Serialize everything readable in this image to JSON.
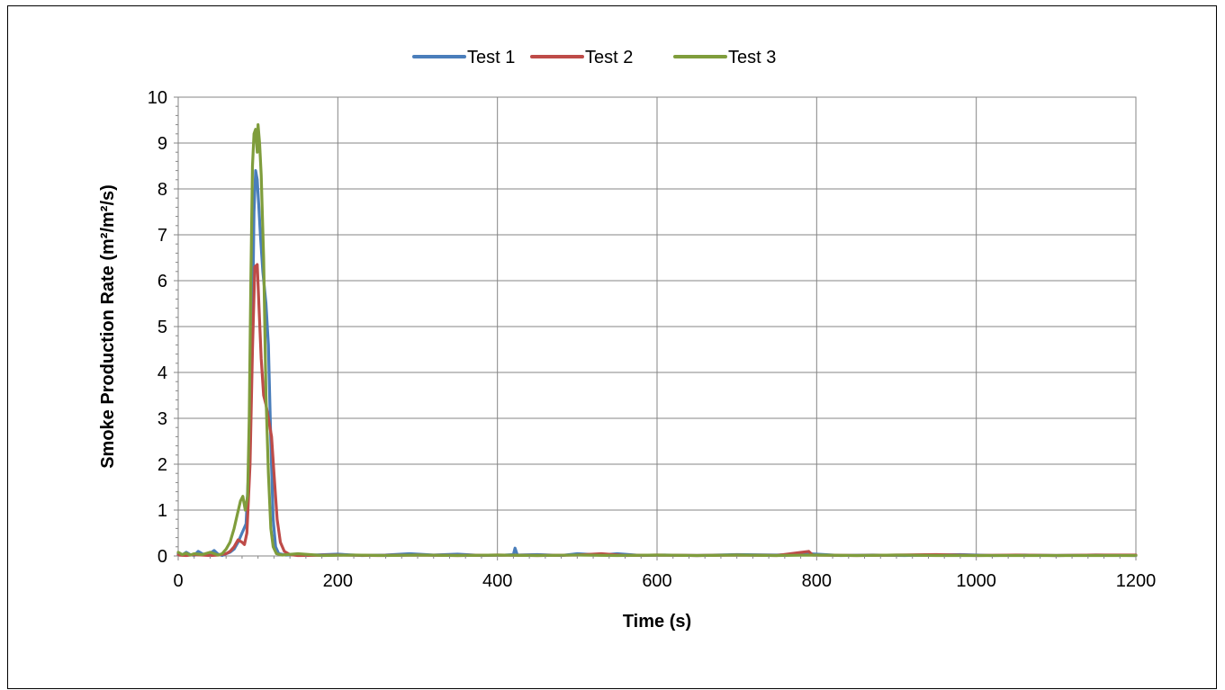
{
  "chart_data": {
    "type": "line",
    "title": "",
    "xlabel": "Time (s)",
    "ylabel": "Smoke Production Rate (m²/m²/s)",
    "xlim": [
      0,
      1200
    ],
    "ylim": [
      0,
      10
    ],
    "xticks": [
      0,
      200,
      400,
      600,
      800,
      1000,
      1200
    ],
    "yticks": [
      0,
      1,
      2,
      3,
      4,
      5,
      6,
      7,
      8,
      9,
      10
    ],
    "grid": true,
    "legend_position": "top-center",
    "series": [
      {
        "name": "Test 1",
        "color": "#4a7ebb",
        "points": [
          [
            0,
            0.05
          ],
          [
            5,
            0.02
          ],
          [
            10,
            0.08
          ],
          [
            15,
            0.03
          ],
          [
            20,
            0.01
          ],
          [
            25,
            0.1
          ],
          [
            30,
            0.05
          ],
          [
            35,
            0.02
          ],
          [
            40,
            0.06
          ],
          [
            45,
            0.12
          ],
          [
            50,
            0.04
          ],
          [
            55,
            0.01
          ],
          [
            60,
            0.05
          ],
          [
            65,
            0.08
          ],
          [
            70,
            0.15
          ],
          [
            75,
            0.3
          ],
          [
            80,
            0.5
          ],
          [
            85,
            0.7
          ],
          [
            90,
            2.5
          ],
          [
            93,
            5.0
          ],
          [
            95,
            7.5
          ],
          [
            97,
            8.4
          ],
          [
            99,
            8.2
          ],
          [
            101,
            7.6
          ],
          [
            103,
            7.0
          ],
          [
            106,
            6.2
          ],
          [
            110,
            5.5
          ],
          [
            113,
            4.6
          ],
          [
            116,
            2.5
          ],
          [
            119,
            0.8
          ],
          [
            122,
            0.2
          ],
          [
            126,
            0.05
          ],
          [
            135,
            0.02
          ],
          [
            150,
            0.03
          ],
          [
            170,
            0.02
          ],
          [
            200,
            0.04
          ],
          [
            230,
            0.01
          ],
          [
            260,
            0.02
          ],
          [
            290,
            0.05
          ],
          [
            320,
            0.02
          ],
          [
            350,
            0.04
          ],
          [
            380,
            0.01
          ],
          [
            410,
            0.02
          ],
          [
            420,
            0.03
          ],
          [
            422,
            0.17
          ],
          [
            425,
            0.02
          ],
          [
            450,
            0.03
          ],
          [
            480,
            0.01
          ],
          [
            500,
            0.05
          ],
          [
            530,
            0.02
          ],
          [
            550,
            0.05
          ],
          [
            580,
            0.01
          ],
          [
            610,
            0.02
          ],
          [
            650,
            0.01
          ],
          [
            700,
            0.03
          ],
          [
            750,
            0.02
          ],
          [
            790,
            0.05
          ],
          [
            830,
            0.01
          ],
          [
            870,
            0.02
          ],
          [
            910,
            0.01
          ],
          [
            950,
            0.02
          ],
          [
            980,
            0.03
          ],
          [
            1020,
            0.01
          ],
          [
            1060,
            0.02
          ],
          [
            1100,
            0.01
          ],
          [
            1150,
            0.02
          ],
          [
            1200,
            0.01
          ]
        ]
      },
      {
        "name": "Test 2",
        "color": "#be4b48",
        "points": [
          [
            0,
            0.02
          ],
          [
            10,
            0.01
          ],
          [
            20,
            0.03
          ],
          [
            30,
            0.02
          ],
          [
            40,
            0.01
          ],
          [
            50,
            0.02
          ],
          [
            60,
            0.05
          ],
          [
            65,
            0.1
          ],
          [
            70,
            0.2
          ],
          [
            75,
            0.35
          ],
          [
            80,
            0.3
          ],
          [
            83,
            0.25
          ],
          [
            86,
            0.5
          ],
          [
            90,
            2.0
          ],
          [
            93,
            4.5
          ],
          [
            96,
            6.3
          ],
          [
            99,
            6.35
          ],
          [
            101,
            5.5
          ],
          [
            104,
            4.3
          ],
          [
            107,
            3.5
          ],
          [
            110,
            3.3
          ],
          [
            113,
            3.0
          ],
          [
            117,
            2.6
          ],
          [
            120,
            1.8
          ],
          [
            124,
            0.8
          ],
          [
            128,
            0.3
          ],
          [
            133,
            0.1
          ],
          [
            140,
            0.03
          ],
          [
            150,
            0.01
          ],
          [
            200,
            0.02
          ],
          [
            250,
            0.01
          ],
          [
            300,
            0.02
          ],
          [
            350,
            0.01
          ],
          [
            400,
            0.02
          ],
          [
            450,
            0.01
          ],
          [
            500,
            0.02
          ],
          [
            530,
            0.05
          ],
          [
            560,
            0.01
          ],
          [
            600,
            0.02
          ],
          [
            650,
            0.01
          ],
          [
            700,
            0.02
          ],
          [
            750,
            0.01
          ],
          [
            790,
            0.1
          ],
          [
            795,
            0.02
          ],
          [
            850,
            0.01
          ],
          [
            900,
            0.02
          ],
          [
            950,
            0.03
          ],
          [
            1000,
            0.01
          ],
          [
            1050,
            0.02
          ],
          [
            1100,
            0.01
          ],
          [
            1150,
            0.02
          ],
          [
            1200,
            0.02
          ]
        ]
      },
      {
        "name": "Test 3",
        "color": "#7f9d3c",
        "points": [
          [
            0,
            0.08
          ],
          [
            5,
            0.03
          ],
          [
            10,
            0.06
          ],
          [
            15,
            0.02
          ],
          [
            20,
            0.05
          ],
          [
            30,
            0.03
          ],
          [
            40,
            0.08
          ],
          [
            50,
            0.02
          ],
          [
            55,
            0.05
          ],
          [
            60,
            0.15
          ],
          [
            65,
            0.3
          ],
          [
            70,
            0.6
          ],
          [
            74,
            0.9
          ],
          [
            78,
            1.2
          ],
          [
            81,
            1.3
          ],
          [
            84,
            1.0
          ],
          [
            87,
            1.3
          ],
          [
            89,
            3.0
          ],
          [
            91,
            6.0
          ],
          [
            93,
            8.5
          ],
          [
            95,
            9.2
          ],
          [
            97,
            9.3
          ],
          [
            99,
            8.8
          ],
          [
            100,
            9.4
          ],
          [
            102,
            9.0
          ],
          [
            104,
            8.3
          ],
          [
            107,
            6.5
          ],
          [
            110,
            3.5
          ],
          [
            113,
            1.8
          ],
          [
            116,
            0.6
          ],
          [
            119,
            0.2
          ],
          [
            123,
            0.05
          ],
          [
            130,
            0.02
          ],
          [
            150,
            0.05
          ],
          [
            180,
            0.01
          ],
          [
            220,
            0.02
          ],
          [
            260,
            0.01
          ],
          [
            300,
            0.02
          ],
          [
            350,
            0.01
          ],
          [
            400,
            0.02
          ],
          [
            450,
            0.01
          ],
          [
            500,
            0.02
          ],
          [
            550,
            0.01
          ],
          [
            600,
            0.02
          ],
          [
            650,
            0.01
          ],
          [
            700,
            0.02
          ],
          [
            750,
            0.01
          ],
          [
            800,
            0.02
          ],
          [
            850,
            0.01
          ],
          [
            900,
            0.02
          ],
          [
            950,
            0.01
          ],
          [
            1000,
            0.01
          ],
          [
            1050,
            0.01
          ],
          [
            1100,
            0.01
          ],
          [
            1150,
            0.01
          ],
          [
            1200,
            0.01
          ]
        ]
      }
    ]
  }
}
